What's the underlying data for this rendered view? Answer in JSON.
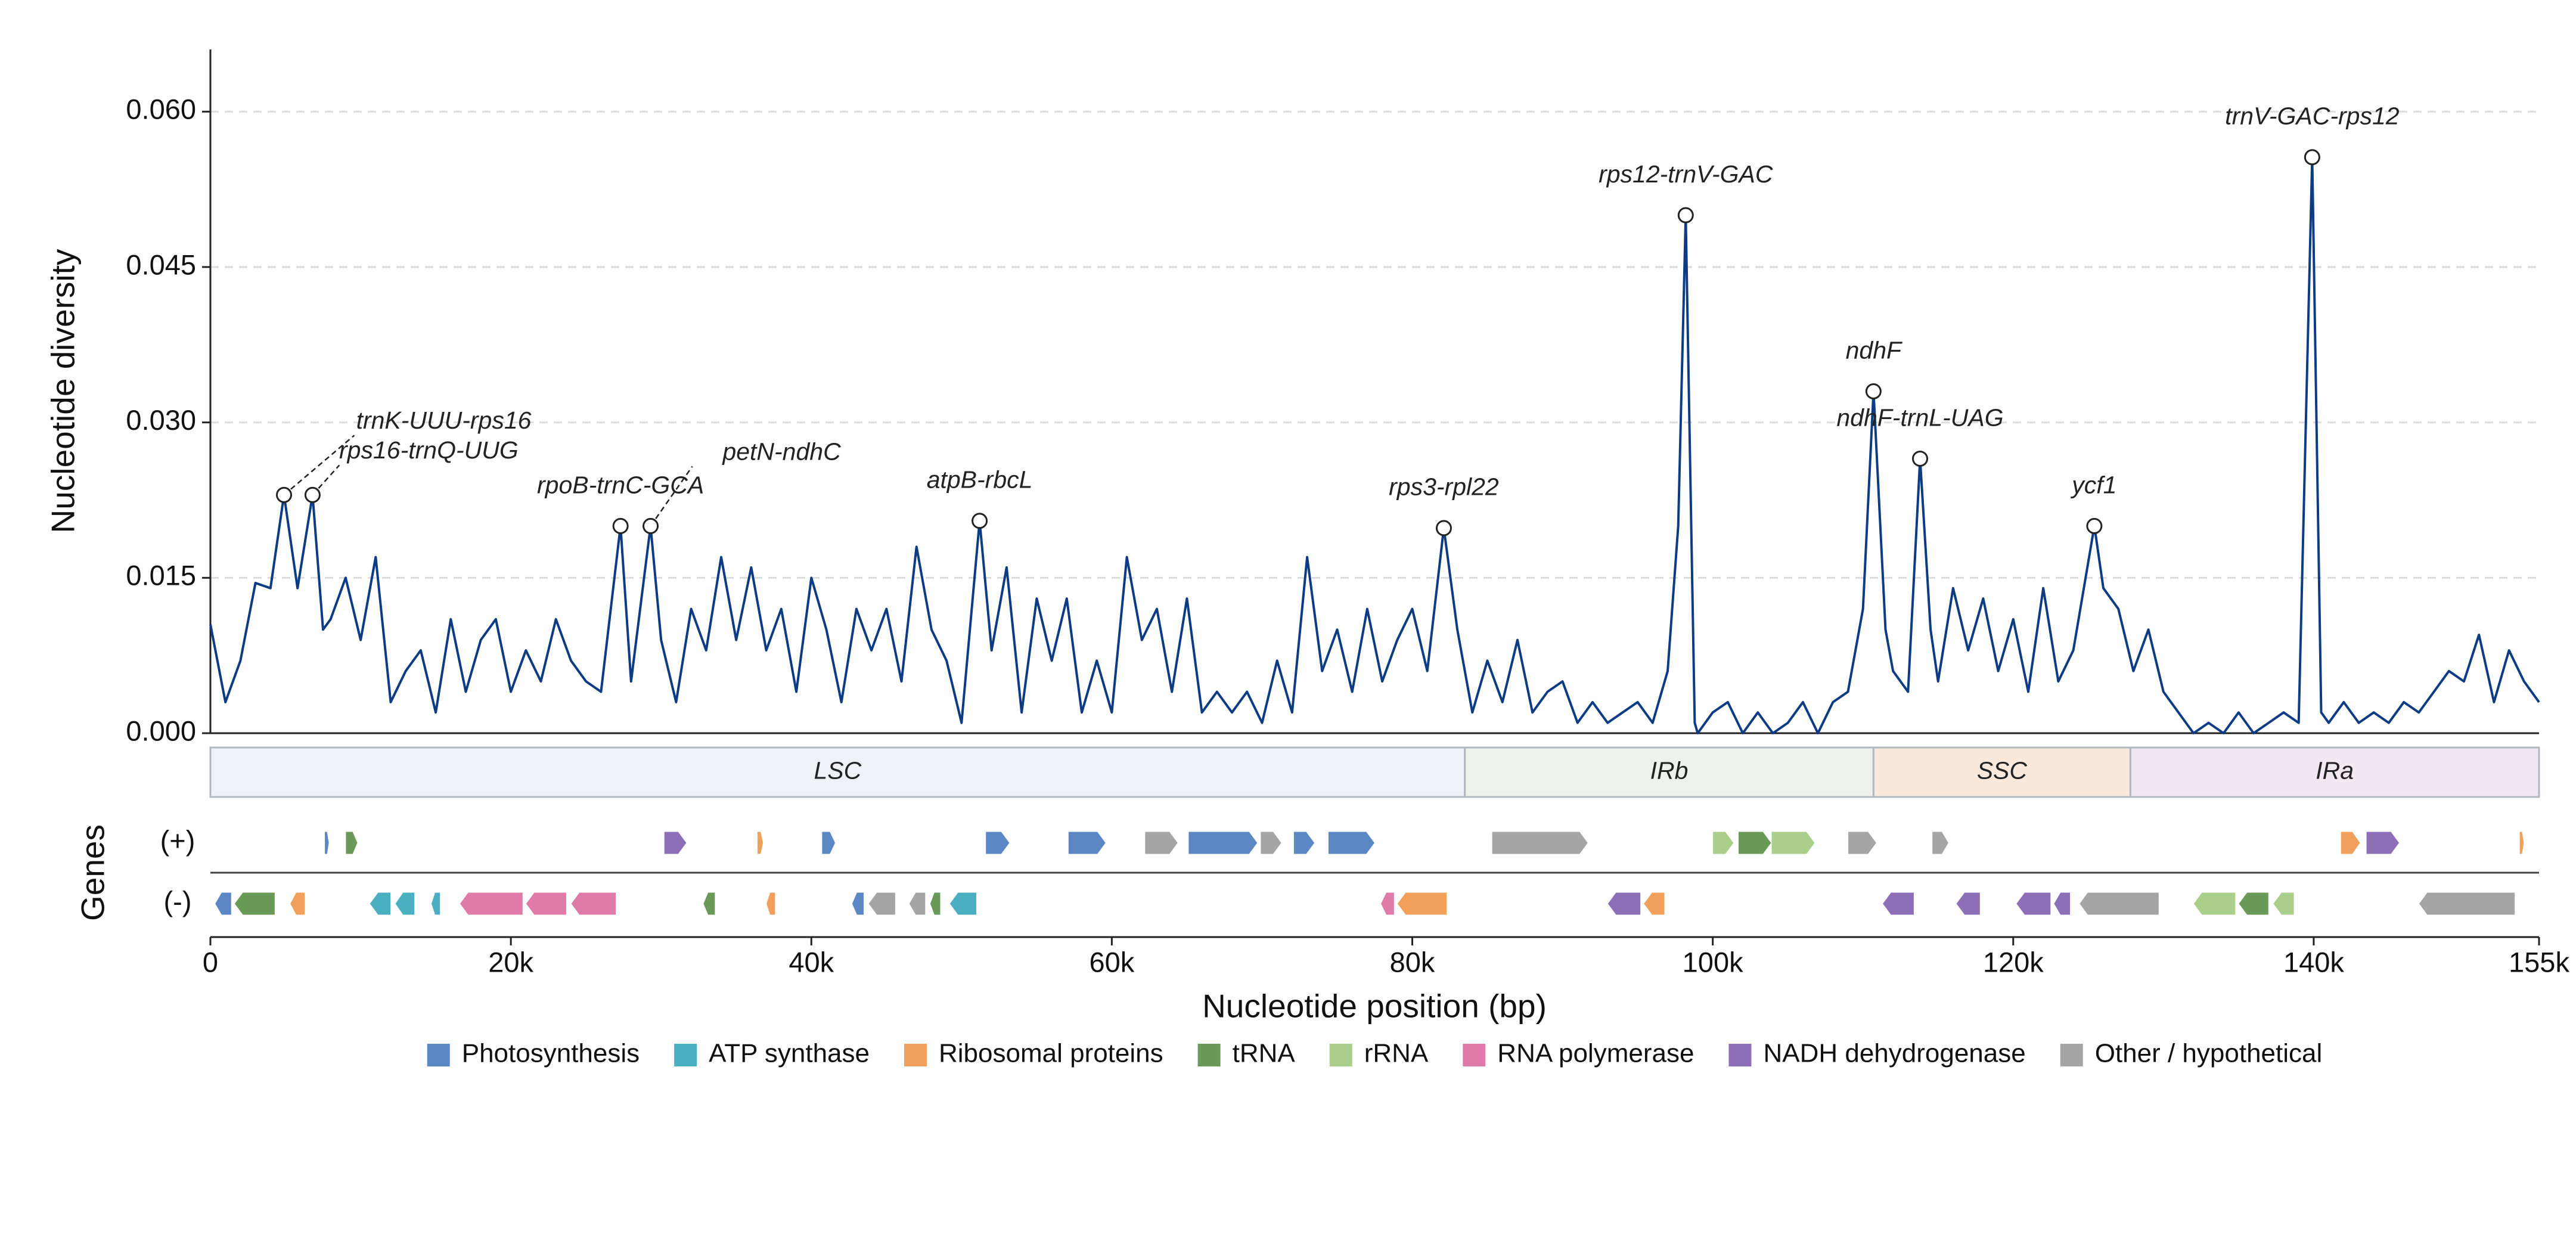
{
  "chart_data": {
    "type": "line",
    "ylabel": "Nucleotide diversity",
    "xlabel": "Nucleotide position (bp)",
    "color": "#0d3b84",
    "grid": true,
    "xlim": [
      0,
      155000
    ],
    "ylim": [
      0,
      0.066
    ],
    "xticks": [
      0,
      {
        "value": 20000,
        "label": "20k"
      },
      {
        "value": 40000,
        "label": "40k"
      },
      {
        "value": 60000,
        "label": "60k"
      },
      {
        "value": 80000,
        "label": "80k"
      },
      {
        "value": 100000,
        "label": "100k"
      },
      {
        "value": 120000,
        "label": "120k"
      },
      {
        "value": 140000,
        "label": "140k"
      },
      {
        "value": 155000,
        "label": "155k"
      }
    ],
    "yticks": [
      {
        "value": 0,
        "label": "0.000"
      },
      0.015,
      {
        "value": 0.03,
        "label": "0.030"
      },
      0.045,
      {
        "value": 0.06,
        "label": "0.060"
      }
    ],
    "x": [
      0,
      1000,
      2000,
      3000,
      4000,
      4900,
      5800,
      6800,
      7500,
      8000,
      9000,
      10000,
      11000,
      12000,
      13000,
      14000,
      15000,
      16000,
      17000,
      18000,
      19000,
      20000,
      21000,
      22000,
      23000,
      24000,
      25000,
      26000,
      27300,
      28000,
      29300,
      30000,
      31000,
      32000,
      33000,
      34000,
      35000,
      36000,
      37000,
      38000,
      39000,
      40000,
      41000,
      42000,
      43000,
      44000,
      45000,
      46000,
      47000,
      48000,
      49000,
      50000,
      51200,
      52000,
      53000,
      54000,
      55000,
      56000,
      57000,
      58000,
      59000,
      60000,
      61000,
      62000,
      63000,
      64000,
      65000,
      66000,
      67000,
      68000,
      69000,
      70000,
      71000,
      72000,
      73000,
      74000,
      75000,
      76000,
      77000,
      78000,
      79000,
      80000,
      81000,
      82100,
      83000,
      84000,
      85000,
      86000,
      87000,
      88000,
      89000,
      90000,
      91000,
      92000,
      93000,
      94000,
      95000,
      96000,
      97000,
      97700,
      98200,
      98800,
      99000,
      100000,
      101000,
      102000,
      103000,
      104000,
      105000,
      106000,
      107000,
      108000,
      109000,
      110000,
      110700,
      111500,
      112000,
      113000,
      113800,
      114500,
      115000,
      116000,
      117000,
      118000,
      119000,
      120000,
      121000,
      122000,
      123000,
      124000,
      125400,
      126000,
      127000,
      128000,
      129000,
      130000,
      131000,
      132000,
      133000,
      134000,
      135000,
      136000,
      137000,
      138000,
      139000,
      139900,
      140500,
      141000,
      142000,
      143000,
      144000,
      145000,
      146000,
      147000,
      148000,
      149000,
      150000,
      151000,
      152000,
      153000,
      154000,
      155000
    ],
    "values": [
      0.0105,
      0.003,
      0.007,
      0.0145,
      0.014,
      0.023,
      0.014,
      0.023,
      0.01,
      0.011,
      0.015,
      0.009,
      0.017,
      0.003,
      0.006,
      0.008,
      0.002,
      0.011,
      0.004,
      0.009,
      0.011,
      0.004,
      0.008,
      0.005,
      0.011,
      0.007,
      0.005,
      0.004,
      0.02,
      0.005,
      0.02,
      0.009,
      0.003,
      0.012,
      0.008,
      0.017,
      0.009,
      0.016,
      0.008,
      0.012,
      0.004,
      0.015,
      0.01,
      0.003,
      0.012,
      0.008,
      0.012,
      0.005,
      0.018,
      0.01,
      0.007,
      0.001,
      0.0205,
      0.008,
      0.016,
      0.002,
      0.013,
      0.007,
      0.013,
      0.002,
      0.007,
      0.002,
      0.017,
      0.009,
      0.012,
      0.004,
      0.013,
      0.002,
      0.004,
      0.002,
      0.004,
      0.001,
      0.007,
      0.002,
      0.017,
      0.006,
      0.01,
      0.004,
      0.012,
      0.005,
      0.009,
      0.012,
      0.006,
      0.0198,
      0.01,
      0.002,
      0.007,
      0.003,
      0.009,
      0.002,
      0.004,
      0.005,
      0.001,
      0.003,
      0.001,
      0.002,
      0.003,
      0.001,
      0.006,
      0.02,
      0.05,
      0.001,
      0,
      0.002,
      0.003,
      0,
      0.002,
      0,
      0.001,
      0.003,
      0,
      0.003,
      0.004,
      0.012,
      0.033,
      0.01,
      0.006,
      0.004,
      0.0265,
      0.01,
      0.005,
      0.014,
      0.008,
      0.013,
      0.006,
      0.011,
      0.004,
      0.014,
      0.005,
      0.008,
      0.02,
      0.014,
      0.012,
      0.006,
      0.01,
      0.004,
      0.002,
      0,
      0.001,
      0,
      0.002,
      0,
      0.001,
      0.002,
      0.001,
      0.0556,
      0.002,
      0.001,
      0.003,
      0.001,
      0.002,
      0.001,
      0.003,
      0.002,
      0.004,
      0.006,
      0.005,
      0.0095,
      0.003,
      0.008,
      0.005,
      0.003
    ],
    "annotations": [
      {
        "label": "trnK-UUU-rps16",
        "x": 4900,
        "y": 0.023
      },
      {
        "label": "rps16-trnQ-UUG",
        "x": 6800,
        "y": 0.023
      },
      {
        "label": "rpoB-trnC-GCA",
        "x": 27300,
        "y": 0.02
      },
      {
        "label": "petN-ndhC",
        "x": 29300,
        "y": 0.02
      },
      {
        "label": "atpB-rbcL",
        "x": 51200,
        "y": 0.0205
      },
      {
        "label": "rps3-rpl22",
        "x": 82100,
        "y": 0.0198
      },
      {
        "label": "rps12-trnV-GAC",
        "x": 98200,
        "y": 0.05
      },
      {
        "label": "ndhF",
        "x": 110700,
        "y": 0.033
      },
      {
        "label": "ndhF-trnL-UAG",
        "x": 113800,
        "y": 0.0265
      },
      {
        "label": "ycf1",
        "x": 125400,
        "y": 0.02
      },
      {
        "label": "trnV-GAC-rps12",
        "x": 139900,
        "y": 0.0556
      }
    ],
    "regions": [
      {
        "name": "LSC",
        "start": 0,
        "end": 83500,
        "color": "#eef2f6"
      },
      {
        "name": "IRb",
        "start": 83500,
        "end": 110700,
        "color": "#edf3ea"
      },
      {
        "name": "SSC",
        "start": 110700,
        "end": 127800,
        "color": "#f9e9dc"
      },
      {
        "name": "IRa",
        "start": 127800,
        "end": 155000,
        "color": "#f2e8f2"
      }
    ],
    "genes_label": "Genes",
    "tracks": [
      "(+)",
      "(-)"
    ],
    "gene_categories": [
      {
        "name": "Photosynthesis",
        "color": "#5b87c5"
      },
      {
        "name": "ATP synthase",
        "color": "#4ab0c1"
      },
      {
        "name": "Ribosomal proteins",
        "color": "#f0a05a"
      },
      {
        "name": "tRNA",
        "color": "#6a9a58"
      },
      {
        "name": "rRNA",
        "color": "#a9cf8a"
      },
      {
        "name": "RNA polymerase",
        "color": "#e07aa8"
      },
      {
        "name": "NADH dehydrogenase",
        "color": "#8d6fb8"
      },
      {
        "name": "Other / hypothetical",
        "color": "#a5a5a5"
      }
    ],
    "genes": [
      {
        "start": 7600,
        "end": 7900,
        "strand": "+",
        "category": 0
      },
      {
        "start": 9000,
        "end": 9800,
        "strand": "+",
        "category": 3
      },
      {
        "start": 30200,
        "end": 31700,
        "strand": "+",
        "category": 6
      },
      {
        "start": 36400,
        "end": 36800,
        "strand": "+",
        "category": 2
      },
      {
        "start": 40700,
        "end": 41600,
        "strand": "+",
        "category": 0
      },
      {
        "start": 51600,
        "end": 53200,
        "strand": "+",
        "category": 0
      },
      {
        "start": 57100,
        "end": 59600,
        "strand": "+",
        "category": 0
      },
      {
        "start": 62200,
        "end": 64400,
        "strand": "+",
        "category": 7
      },
      {
        "start": 65100,
        "end": 69700,
        "strand": "+",
        "category": 0
      },
      {
        "start": 69900,
        "end": 71300,
        "strand": "+",
        "category": 7
      },
      {
        "start": 72100,
        "end": 73500,
        "strand": "+",
        "category": 0
      },
      {
        "start": 74400,
        "end": 77500,
        "strand": "+",
        "category": 0
      },
      {
        "start": 85300,
        "end": 91700,
        "strand": "+",
        "category": 7
      },
      {
        "start": 100000,
        "end": 101400,
        "strand": "+",
        "category": 4
      },
      {
        "start": 101700,
        "end": 103900,
        "strand": "+",
        "category": 3
      },
      {
        "start": 103900,
        "end": 106800,
        "strand": "+",
        "category": 4
      },
      {
        "start": 109000,
        "end": 110900,
        "strand": "+",
        "category": 7
      },
      {
        "start": 114600,
        "end": 115700,
        "strand": "+",
        "category": 7
      },
      {
        "start": 141800,
        "end": 143100,
        "strand": "+",
        "category": 2
      },
      {
        "start": 143500,
        "end": 145700,
        "strand": "+",
        "category": 6
      },
      {
        "start": 153700,
        "end": 154000,
        "strand": "+",
        "category": 2
      },
      {
        "start": 300,
        "end": 1400,
        "strand": "-",
        "category": 0
      },
      {
        "start": 1600,
        "end": 4300,
        "strand": "-",
        "category": 3
      },
      {
        "start": 5300,
        "end": 6300,
        "strand": "-",
        "category": 2
      },
      {
        "start": 10600,
        "end": 12000,
        "strand": "-",
        "category": 1
      },
      {
        "start": 12300,
        "end": 13600,
        "strand": "-",
        "category": 1
      },
      {
        "start": 14700,
        "end": 15300,
        "strand": "-",
        "category": 1
      },
      {
        "start": 16600,
        "end": 20800,
        "strand": "-",
        "category": 5
      },
      {
        "start": 21000,
        "end": 23700,
        "strand": "-",
        "category": 5
      },
      {
        "start": 24000,
        "end": 27000,
        "strand": "-",
        "category": 5
      },
      {
        "start": 32800,
        "end": 33600,
        "strand": "-",
        "category": 3
      },
      {
        "start": 37000,
        "end": 37600,
        "strand": "-",
        "category": 2
      },
      {
        "start": 42700,
        "end": 43500,
        "strand": "-",
        "category": 0
      },
      {
        "start": 43800,
        "end": 45600,
        "strand": "-",
        "category": 7
      },
      {
        "start": 46500,
        "end": 47600,
        "strand": "-",
        "category": 7
      },
      {
        "start": 47900,
        "end": 48600,
        "strand": "-",
        "category": 3
      },
      {
        "start": 49200,
        "end": 51000,
        "strand": "-",
        "category": 1
      },
      {
        "start": 77900,
        "end": 78800,
        "strand": "-",
        "category": 5
      },
      {
        "start": 79000,
        "end": 82300,
        "strand": "-",
        "category": 2
      },
      {
        "start": 93000,
        "end": 95200,
        "strand": "-",
        "category": 6
      },
      {
        "start": 95400,
        "end": 96800,
        "strand": "-",
        "category": 2
      },
      {
        "start": 111300,
        "end": 113400,
        "strand": "-",
        "category": 6
      },
      {
        "start": 116200,
        "end": 117800,
        "strand": "-",
        "category": 6
      },
      {
        "start": 120200,
        "end": 122500,
        "strand": "-",
        "category": 6
      },
      {
        "start": 122700,
        "end": 123800,
        "strand": "-",
        "category": 6
      },
      {
        "start": 124400,
        "end": 129700,
        "strand": "-",
        "category": 7
      },
      {
        "start": 132000,
        "end": 134800,
        "strand": "-",
        "category": 4
      },
      {
        "start": 135000,
        "end": 137000,
        "strand": "-",
        "category": 3
      },
      {
        "start": 137300,
        "end": 138700,
        "strand": "-",
        "category": 4
      },
      {
        "start": 147000,
        "end": 153400,
        "strand": "-",
        "category": 7
      }
    ]
  }
}
